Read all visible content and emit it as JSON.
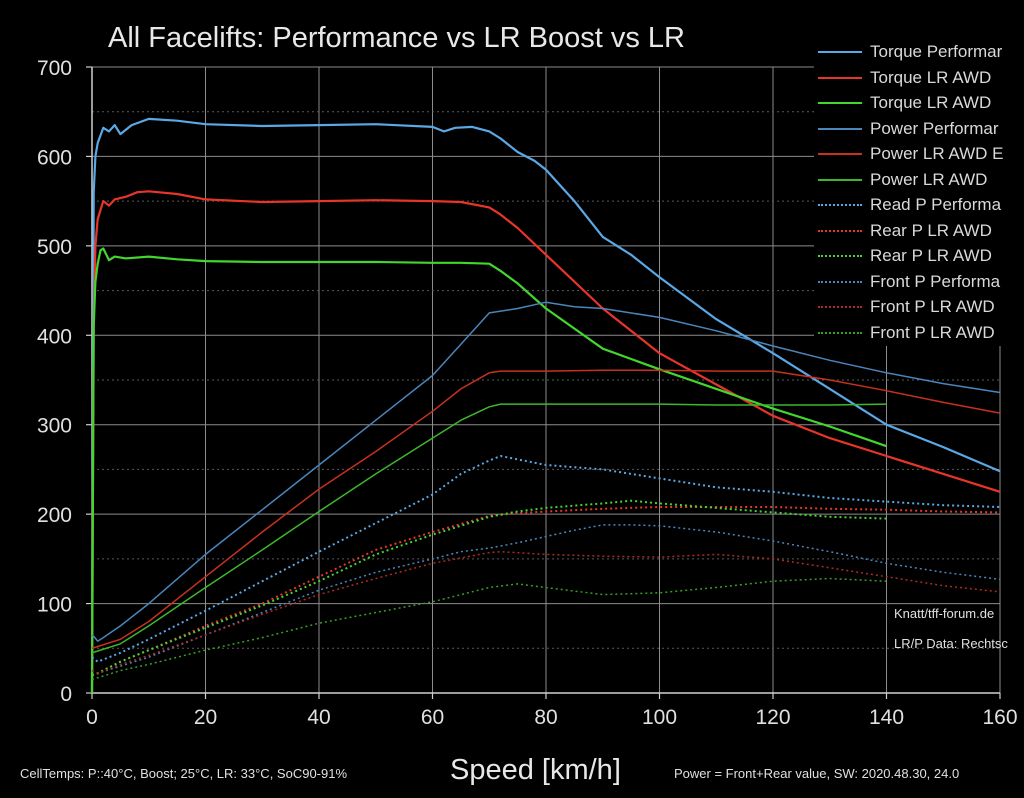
{
  "chart_data": {
    "type": "line",
    "title": "All Facelifts: Performance vs LR Boost vs LR",
    "xlabel": "Speed [km/h]",
    "ylabel": "",
    "xlim": [
      0,
      160
    ],
    "ylim": [
      0,
      700
    ],
    "xticks": [
      0,
      20,
      40,
      60,
      80,
      100,
      120,
      140,
      160
    ],
    "yticks": [
      0,
      100,
      200,
      300,
      400,
      500,
      600,
      700
    ],
    "grid": true,
    "legend_position": "top-right",
    "footnotes": {
      "left": "CellTemps: P::40°C, Boost; 25°C, LR: 33°C, SoC90-91%",
      "right": "Power = Front+Rear value, SW: 2020.48.30, 24.0"
    },
    "annotations": [
      "Knatt/tff-forum.de",
      "LR/P Data: Rechtsc"
    ],
    "series": [
      {
        "name": "Torque Performar",
        "color": "#5aa8e6",
        "style": "solid",
        "width": 2.2,
        "x": [
          0,
          0.3,
          0.6,
          1,
          2,
          3,
          4,
          5,
          7,
          10,
          15,
          20,
          30,
          40,
          50,
          60,
          62,
          64,
          67,
          70,
          72,
          75,
          78,
          80,
          85,
          90,
          95,
          100,
          110,
          120,
          130,
          140,
          150,
          160
        ],
        "y": [
          0,
          560,
          600,
          615,
          632,
          628,
          635,
          625,
          635,
          642,
          640,
          636,
          634,
          635,
          636,
          633,
          628,
          632,
          633,
          628,
          620,
          605,
          595,
          585,
          550,
          510,
          490,
          465,
          418,
          380,
          340,
          300,
          275,
          248
        ]
      },
      {
        "name": "Torque LR AWD",
        "color": "#e8352a",
        "style": "solid",
        "width": 2.2,
        "x": [
          0,
          0.3,
          0.6,
          1,
          2,
          3,
          4,
          6,
          8,
          10,
          15,
          20,
          30,
          40,
          50,
          60,
          65,
          70,
          72,
          75,
          80,
          90,
          100,
          110,
          120,
          130,
          140,
          150,
          160
        ],
        "y": [
          0,
          410,
          500,
          530,
          550,
          545,
          552,
          555,
          560,
          561,
          558,
          552,
          549,
          550,
          551,
          550,
          549,
          543,
          535,
          520,
          490,
          430,
          380,
          345,
          310,
          285,
          265,
          245,
          225
        ]
      },
      {
        "name": "Torque LR AWD",
        "color": "#43d62e",
        "style": "solid",
        "width": 2.2,
        "x": [
          0,
          0.3,
          0.6,
          1,
          1.5,
          2,
          3,
          4,
          6,
          10,
          15,
          20,
          30,
          40,
          50,
          60,
          65,
          70,
          72,
          75,
          80,
          90,
          100,
          110,
          120,
          130,
          140
        ],
        "y": [
          0,
          410,
          460,
          480,
          495,
          497,
          484,
          488,
          486,
          488,
          485,
          483,
          482,
          482,
          482,
          481,
          481,
          480,
          472,
          458,
          430,
          385,
          362,
          340,
          318,
          298,
          276
        ]
      },
      {
        "name": "Power Performar",
        "color": "#4a86bc",
        "style": "solid",
        "width": 1.5,
        "x": [
          0,
          0.5,
          1,
          2,
          5,
          10,
          20,
          30,
          40,
          50,
          60,
          65,
          70,
          75,
          80,
          85,
          90,
          100,
          110,
          120,
          130,
          140,
          150,
          160
        ],
        "y": [
          65,
          62,
          58,
          62,
          75,
          100,
          155,
          205,
          255,
          305,
          355,
          390,
          425,
          430,
          437,
          432,
          430,
          420,
          405,
          388,
          372,
          358,
          346,
          336
        ]
      },
      {
        "name": "Power LR AWD E",
        "color": "#c8301f",
        "style": "solid",
        "width": 1.5,
        "x": [
          0,
          1,
          5,
          10,
          20,
          30,
          40,
          50,
          60,
          65,
          70,
          72,
          80,
          90,
          100,
          110,
          120,
          130,
          140,
          150,
          160
        ],
        "y": [
          50,
          52,
          60,
          80,
          130,
          180,
          228,
          270,
          315,
          340,
          358,
          360,
          360,
          361,
          361,
          360,
          360,
          350,
          338,
          325,
          313
        ]
      },
      {
        "name": "Power LR AWD",
        "color": "#3cb82a",
        "style": "solid",
        "width": 1.5,
        "x": [
          0,
          1,
          5,
          10,
          20,
          30,
          40,
          50,
          60,
          65,
          70,
          72,
          80,
          90,
          100,
          110,
          120,
          130,
          140
        ],
        "y": [
          45,
          47,
          55,
          75,
          118,
          160,
          203,
          245,
          285,
          305,
          320,
          323,
          323,
          323,
          323,
          322,
          322,
          322,
          323
        ]
      },
      {
        "name": "Read P Performa",
        "color": "#5aa8e6",
        "style": "dotted",
        "width": 2,
        "x": [
          0,
          1,
          5,
          10,
          20,
          30,
          40,
          50,
          60,
          65,
          70,
          72,
          80,
          90,
          100,
          110,
          120,
          130,
          140,
          150,
          160
        ],
        "y": [
          40,
          35,
          45,
          60,
          92,
          125,
          158,
          190,
          222,
          245,
          260,
          265,
          255,
          250,
          240,
          230,
          225,
          218,
          214,
          210,
          208
        ]
      },
      {
        "name": "Rear P LR AWD",
        "color": "#e8352a",
        "style": "dotted",
        "width": 2,
        "x": [
          0,
          1,
          5,
          10,
          20,
          30,
          40,
          50,
          60,
          70,
          75,
          80,
          90,
          100,
          110,
          120,
          130,
          140,
          150,
          160
        ],
        "y": [
          20,
          22,
          35,
          48,
          75,
          100,
          130,
          160,
          180,
          198,
          201,
          203,
          206,
          208,
          208,
          208,
          206,
          205,
          203,
          202
        ]
      },
      {
        "name": "Rear P LR AWD",
        "color": "#43d62e",
        "style": "dotted",
        "width": 2,
        "x": [
          0,
          1,
          5,
          10,
          20,
          30,
          40,
          50,
          60,
          70,
          75,
          80,
          90,
          95,
          100,
          110,
          120,
          130,
          140
        ],
        "y": [
          20,
          22,
          35,
          48,
          73,
          98,
          125,
          155,
          177,
          197,
          203,
          207,
          212,
          215,
          212,
          207,
          202,
          197,
          195
        ]
      },
      {
        "name": "Front P Performa",
        "color": "#4a86bc",
        "style": "dotted",
        "width": 1.5,
        "x": [
          0,
          1,
          5,
          10,
          20,
          30,
          40,
          50,
          60,
          65,
          70,
          75,
          80,
          85,
          90,
          95,
          100,
          110,
          120,
          130,
          140,
          150,
          160
        ],
        "y": [
          25,
          22,
          30,
          40,
          65,
          90,
          115,
          135,
          150,
          158,
          162,
          168,
          175,
          182,
          188,
          188,
          187,
          180,
          170,
          158,
          145,
          135,
          127
        ]
      },
      {
        "name": "Front P LR AWD",
        "color": "#b02a20",
        "style": "dotted",
        "width": 1.5,
        "x": [
          0,
          1,
          5,
          10,
          20,
          30,
          40,
          50,
          60,
          70,
          72,
          80,
          90,
          100,
          110,
          120,
          130,
          140,
          150,
          160
        ],
        "y": [
          25,
          22,
          32,
          42,
          65,
          88,
          110,
          128,
          145,
          157,
          158,
          155,
          153,
          152,
          155,
          150,
          140,
          130,
          120,
          113
        ]
      },
      {
        "name": "Front P LR AWD",
        "color": "#35a024",
        "style": "dotted",
        "width": 1.5,
        "x": [
          0,
          1,
          5,
          10,
          20,
          30,
          40,
          50,
          60,
          70,
          75,
          80,
          90,
          100,
          110,
          120,
          130,
          140
        ],
        "y": [
          15,
          17,
          25,
          32,
          48,
          62,
          78,
          90,
          102,
          118,
          122,
          118,
          110,
          112,
          118,
          125,
          128,
          125
        ]
      }
    ]
  }
}
